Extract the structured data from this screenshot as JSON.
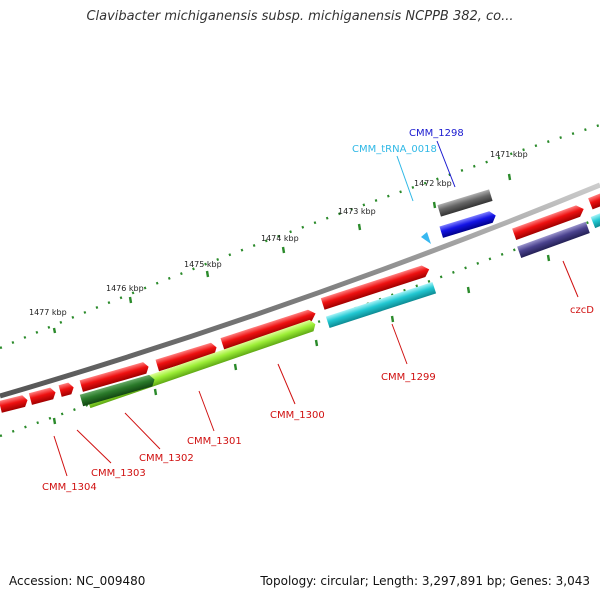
{
  "title": "Clavibacter michiganensis subsp. michiganensis NCPPB 382, co...",
  "footer": {
    "accession": "Accession: NC_009480",
    "topology": "Topology: circular; Length: 3,297,891 bp; Genes: 3,043"
  },
  "scale_labels": [
    "1471 kbp",
    "1472 kbp",
    "1473 kbp",
    "1474 kbp",
    "1475 kbp",
    "1476 kbp",
    "1477 kbp"
  ],
  "gene_labels": [
    {
      "text": "CMM_1298",
      "color": "#1a1ad0"
    },
    {
      "text": "CMM_tRNA_0018",
      "color": "#2fb8e6"
    },
    {
      "text": "czcD",
      "color": "#d01010"
    },
    {
      "text": "CMM_1299",
      "color": "#d01010"
    },
    {
      "text": "CMM_1300",
      "color": "#d01010"
    },
    {
      "text": "CMM_1301",
      "color": "#d01010"
    },
    {
      "text": "CMM_1302",
      "color": "#d01010"
    },
    {
      "text": "CMM_1303",
      "color": "#d01010"
    },
    {
      "text": "CMM_1304",
      "color": "#d01010"
    }
  ],
  "colors": {
    "gene_red": "#e81010",
    "gene_blue": "#1010e0",
    "gene_gray": "#606060",
    "gene_cyan": "#20c8d0",
    "gene_lime": "#99ee33",
    "gene_darkgreen": "#2a7a2a",
    "gene_purple": "#48408a",
    "trna_blue": "#38b8f0",
    "backbone": "#888888",
    "tick_green": "#2a8a2a"
  }
}
